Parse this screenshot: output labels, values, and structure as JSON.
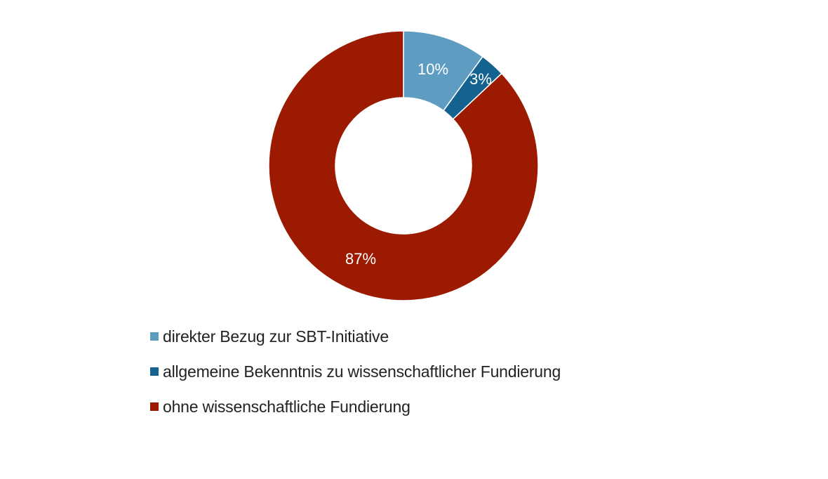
{
  "chart_data": {
    "type": "pie",
    "subtype": "donut",
    "title": "",
    "categories": [
      "direkter Bezug zur SBT-Initiative",
      "allgemeine Bekenntnis zu wissenschaftlicher Fundierung",
      "ohne wissenschaftliche Fundierung"
    ],
    "values": [
      10,
      3,
      87
    ],
    "unit": "%",
    "colors": [
      "#5e9dc1",
      "#14628f",
      "#9b1a00"
    ],
    "data_labels": [
      "10%",
      "3%",
      "87%"
    ],
    "legend_position": "bottom-left",
    "start_angle": "12 o'clock, clockwise"
  },
  "legend": {
    "items": [
      {
        "label": "direkter Bezug zur SBT-Initiative",
        "color": "#5e9dc1"
      },
      {
        "label": "allgemeine Bekenntnis zu wissenschaftlicher Fundierung",
        "color": "#14628f"
      },
      {
        "label": "ohne wissenschaftliche Fundierung",
        "color": "#9b1a00"
      }
    ]
  }
}
